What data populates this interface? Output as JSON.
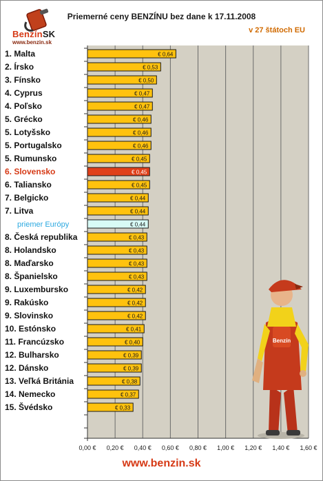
{
  "logo": {
    "brand_main": "Benzín",
    "brand_suffix": "SK",
    "url": "www.benzin.sk"
  },
  "header": {
    "title": "Priemerné ceny BENZÍNU bez dane k 17.11.2008",
    "subtitle": "v 27 štátoch EU"
  },
  "footer": {
    "url": "www.benzin.sk"
  },
  "colors": {
    "bar": "#ffc20e",
    "bar_highlight": "#e0401a",
    "bar_average": "#d8fbf6",
    "plot_bg": "#d4d0c4",
    "highlight_label": "#d63a16",
    "average_label": "#2aa8e0"
  },
  "chart_data": {
    "type": "bar",
    "orientation": "horizontal",
    "title": "Priemerné ceny BENZÍNU bez dane k 17.11.2008",
    "subtitle": "v 27 štátoch EU",
    "xlim": [
      0,
      1.6
    ],
    "x_ticks": [
      "0,00 €",
      "0,20 €",
      "0,40 €",
      "0,60 €",
      "0,80 €",
      "1,00 €",
      "1,20 €",
      "1,40 €",
      "1,60 €"
    ],
    "grid": true,
    "categories": [
      "1. Malta",
      "2. Írsko",
      "3. Fínsko",
      "4. Cyprus",
      "4. Poľsko",
      "5. Grécko",
      "5. Lotyšsko",
      "5. Portugalsko",
      "5. Rumunsko",
      "6. Slovensko",
      "6. Taliansko",
      "7. Belgicko",
      "7. Litva",
      "priemer Európy",
      "8. Česká republika",
      "8. Holandsko",
      "8. Maďarsko",
      "8. Španielsko",
      "9. Luxembursko",
      "9. Rakúsko",
      "9. Slovinsko",
      "10. Estónsko",
      "11. Francúzsko",
      "12. Bulharsko",
      "12. Dánsko",
      "13. Veľká Británia",
      "14. Nemecko",
      "15. Švédsko"
    ],
    "values": [
      0.64,
      0.53,
      0.5,
      0.47,
      0.47,
      0.46,
      0.46,
      0.46,
      0.45,
      0.45,
      0.45,
      0.44,
      0.44,
      0.44,
      0.43,
      0.43,
      0.43,
      0.43,
      0.42,
      0.42,
      0.42,
      0.41,
      0.4,
      0.39,
      0.39,
      0.38,
      0.37,
      0.33
    ],
    "value_labels": [
      "€ 0,64",
      "€ 0,53",
      "€ 0,50",
      "€ 0,47",
      "€ 0,47",
      "€ 0,46",
      "€ 0,46",
      "€ 0,46",
      "€ 0,45",
      "€ 0,45",
      "€ 0,45",
      "€ 0,44",
      "€ 0,44",
      "€ 0,44",
      "€ 0,43",
      "€ 0,43",
      "€ 0,43",
      "€ 0,43",
      "€ 0,42",
      "€ 0,42",
      "€ 0,42",
      "€ 0,41",
      "€ 0,40",
      "€ 0,39",
      "€ 0,39",
      "€ 0,38",
      "€ 0,37",
      "€ 0,33"
    ],
    "highlight_category": "6. Slovensko",
    "average_category": "priemer Európy"
  }
}
